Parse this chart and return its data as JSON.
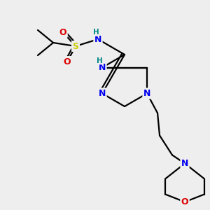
{
  "bg_color": "#eeeeee",
  "colors": {
    "N": "#0000ee",
    "O": "#dd0000",
    "S": "#cccc00",
    "H": "#008888",
    "C": "#000000",
    "bond": "#000000"
  },
  "figsize": [
    3.0,
    3.0
  ],
  "dpi": 100
}
